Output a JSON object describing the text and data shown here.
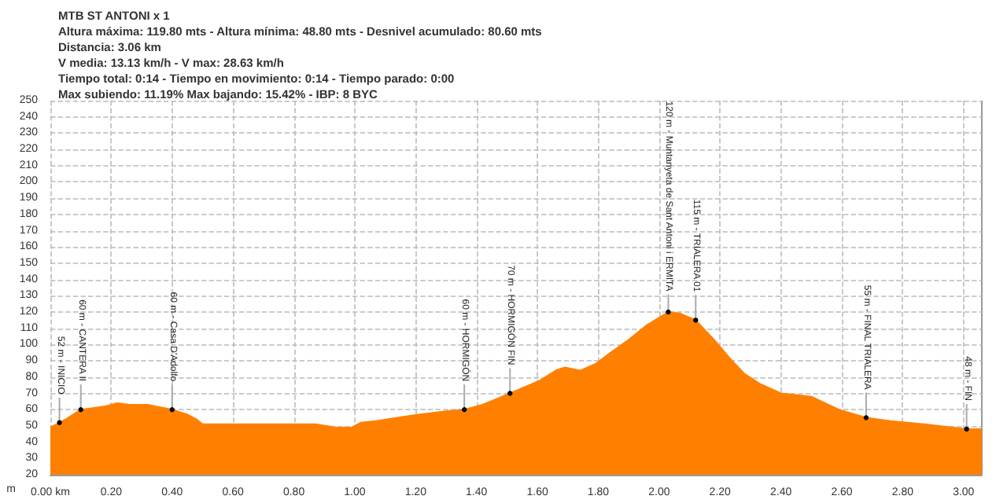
{
  "chart_data": {
    "type": "area",
    "title": "MTB ST ANTONI x 1",
    "ylabel": "m",
    "annotations": [
      "Altura máxima: 119.80 mts - Altura mínima: 48.80 mts - Desnivel acumulado: 80.60 mts",
      "Distancia: 3.06 km",
      "V media: 13.13 km/h - V max: 28.63 km/h",
      "Tiempo total: 0:14 - Tiempo en movimiento: 0:14 - Tiempo parado: 0:00",
      "Max subiendo: 11.19% Max bajando: 15.42% - IBP: 8 BYC",
      {
        "text": "52 m - INICIO",
        "x": 0.03,
        "y": 52
      },
      {
        "text": "60 m - CANTERA II",
        "x": 0.1,
        "y": 60
      },
      {
        "text": "60 m - Casa D'Adolfo",
        "x": 0.4,
        "y": 60
      },
      {
        "text": "60 m - HORMIGÓN",
        "x": 1.36,
        "y": 60
      },
      {
        "text": "70 m - HORMIGÓN FIN",
        "x": 1.51,
        "y": 70
      },
      {
        "text": "120 m - Muntanyeta de Sant Antoni i ERMITA",
        "x": 2.03,
        "y": 120
      },
      {
        "text": "115 m - TRIALERA 01",
        "x": 2.12,
        "y": 115
      },
      {
        "text": "55 m - FINAL TRIALERA",
        "x": 2.68,
        "y": 55
      },
      {
        "text": "48 m - FIN",
        "x": 3.01,
        "y": 48
      }
    ],
    "x": [
      0,
      0.03,
      0.05,
      0.1,
      0.14,
      0.18,
      0.22,
      0.26,
      0.32,
      0.4,
      0.45,
      0.48,
      0.5,
      0.61,
      0.73,
      0.87,
      0.94,
      0.99,
      1.02,
      1.07,
      1.14,
      1.21,
      1.3,
      1.36,
      1.42,
      1.51,
      1.61,
      1.66,
      1.69,
      1.74,
      1.79,
      1.84,
      1.9,
      1.96,
      2.03,
      2.07,
      2.12,
      2.18,
      2.23,
      2.28,
      2.33,
      2.4,
      2.5,
      2.59,
      2.68,
      2.76,
      2.87,
      3.01,
      3.06
    ],
    "series": [
      {
        "color": "#ff8000",
        "values": [
          49,
          52,
          54,
          60,
          61,
          62,
          64,
          63,
          63,
          60,
          57,
          54,
          51,
          51,
          51,
          51,
          49,
          49,
          52,
          53,
          55,
          57,
          59,
          60,
          63,
          70,
          78,
          84,
          86,
          84,
          88,
          95,
          103,
          112,
          120,
          119,
          115,
          103,
          92,
          82,
          76,
          70,
          68,
          60,
          55,
          53,
          51,
          48,
          48
        ]
      }
    ],
    "xlim": [
      0,
      3.06
    ],
    "xticks": [
      {
        "value": 0,
        "label": "0.00 km"
      },
      {
        "value": 0.2,
        "label": "0.20"
      },
      {
        "value": 0.4,
        "label": "0.40"
      },
      {
        "value": 0.6,
        "label": "0.60"
      },
      {
        "value": 0.8,
        "label": "0.80"
      },
      {
        "value": 1,
        "label": "1.00"
      },
      {
        "value": 1.2,
        "label": "1.20"
      },
      {
        "value": 1.4,
        "label": "1.40"
      },
      {
        "value": 1.6,
        "label": "1.60"
      },
      {
        "value": 1.8,
        "label": "1.80"
      },
      {
        "value": 2,
        "label": "2.00"
      },
      {
        "value": 2.2,
        "label": "2.20"
      },
      {
        "value": 2.4,
        "label": "2.40"
      },
      {
        "value": 2.6,
        "label": "2.60"
      },
      {
        "value": 2.8,
        "label": "2.80"
      },
      {
        "value": 3,
        "label": "3.00"
      }
    ],
    "ylim": [
      20,
      250
    ],
    "yticks": [
      20,
      30,
      40,
      50,
      60,
      70,
      80,
      90,
      100,
      110,
      120,
      130,
      140,
      150,
      160,
      170,
      180,
      190,
      200,
      210,
      220,
      230,
      240,
      250
    ],
    "grid": true
  }
}
